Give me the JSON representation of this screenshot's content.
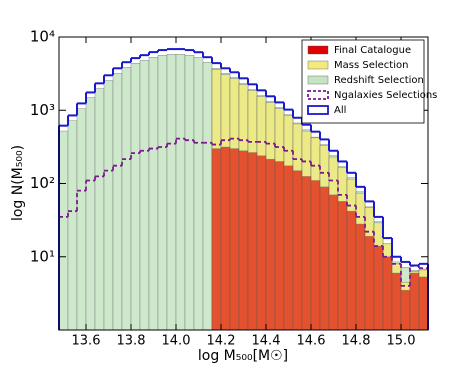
{
  "chart_data": {
    "type": "histogram",
    "xlabel": "log M₅₀₀[M☉]",
    "ylabel": "log N(M₅₀₀)",
    "bins": [
      13.48,
      13.52,
      13.56,
      13.6,
      13.64,
      13.68,
      13.72,
      13.76,
      13.8,
      13.84,
      13.88,
      13.92,
      13.96,
      14.0,
      14.04,
      14.08,
      14.12,
      14.16,
      14.2,
      14.24,
      14.28,
      14.32,
      14.36,
      14.4,
      14.44,
      14.48,
      14.52,
      14.56,
      14.6,
      14.64,
      14.68,
      14.72,
      14.76,
      14.8,
      14.84,
      14.88,
      14.92,
      14.96,
      15.0,
      15.04,
      15.08,
      15.12
    ],
    "xlim": [
      13.48,
      15.12
    ],
    "xticks": [
      13.6,
      13.8,
      {
        "value": 14,
        "label": "14.0"
      },
      14.2,
      14.4,
      14.6,
      14.8,
      {
        "value": 15,
        "label": "15.0"
      }
    ],
    "ylim": [
      1,
      10000
    ],
    "ylog": true,
    "yticks": [
      {
        "value": 10,
        "label": "10¹"
      },
      {
        "value": 100,
        "label": "10²"
      },
      {
        "value": 1000,
        "label": "10³"
      },
      {
        "value": 10000,
        "label": "10⁴"
      }
    ],
    "legend": "upper right",
    "series": [
      {
        "name": "Redshift Selection",
        "style": "fill",
        "color": "#c6e4c4",
        "values": [
          520,
          720,
          1050,
          1490,
          1980,
          2550,
          3180,
          3850,
          4380,
          4800,
          5290,
          5640,
          5810,
          5810,
          5640,
          5270,
          4500,
          3740,
          3180,
          2800,
          2320,
          1920,
          1590,
          1320,
          1090,
          870,
          670,
          540,
          430,
          340,
          240,
          170,
          120,
          77,
          48,
          30,
          15,
          8.5,
          7.2,
          6.5,
          6.8
        ]
      },
      {
        "name": "Mass Selection",
        "style": "fill",
        "color": "#f2ea7c",
        "values": [
          0,
          0,
          0,
          0,
          0,
          0,
          0,
          0,
          0,
          0,
          0,
          0,
          0,
          0,
          0,
          0,
          0,
          3600,
          3070,
          2700,
          2240,
          1850,
          1530,
          1270,
          1050,
          840,
          650,
          520,
          420,
          330,
          230,
          165,
          115,
          74,
          47,
          29,
          15,
          8,
          4.5,
          6.3,
          6.6
        ]
      },
      {
        "name": "Final Catalogue",
        "style": "fill",
        "color": "#e00000",
        "values": [
          0,
          0,
          0,
          0,
          0,
          0,
          0,
          0,
          0,
          0,
          0,
          0,
          0,
          0,
          0,
          0,
          0,
          300,
          315,
          300,
          280,
          265,
          240,
          215,
          200,
          175,
          150,
          125,
          110,
          90,
          70,
          57,
          42,
          28,
          19,
          14,
          10,
          6,
          3.5,
          6,
          5.3
        ]
      },
      {
        "name": "Ngalaxies Selections",
        "style": "dashed",
        "color": "#7b1a8c",
        "values": [
          35,
          42,
          80,
          110,
          125,
          150,
          175,
          215,
          260,
          280,
          300,
          315,
          350,
          410,
          390,
          360,
          360,
          340,
          390,
          410,
          390,
          370,
          370,
          350,
          315,
          280,
          215,
          200,
          175,
          140,
          110,
          70,
          50,
          35,
          22,
          14,
          10,
          8,
          4,
          7.5,
          7
        ]
      },
      {
        "name": "All",
        "style": "step",
        "color": "#1a1acc",
        "values": [
          616,
          850,
          1240,
          1750,
          2330,
          3000,
          3740,
          4530,
          5150,
          5650,
          6220,
          6630,
          6840,
          6840,
          6630,
          6200,
          5300,
          4400,
          3740,
          3300,
          2730,
          2260,
          1870,
          1550,
          1280,
          1020,
          790,
          635,
          510,
          400,
          280,
          200,
          140,
          90,
          57,
          35,
          18,
          10,
          8.5,
          7.6,
          8
        ]
      }
    ]
  }
}
